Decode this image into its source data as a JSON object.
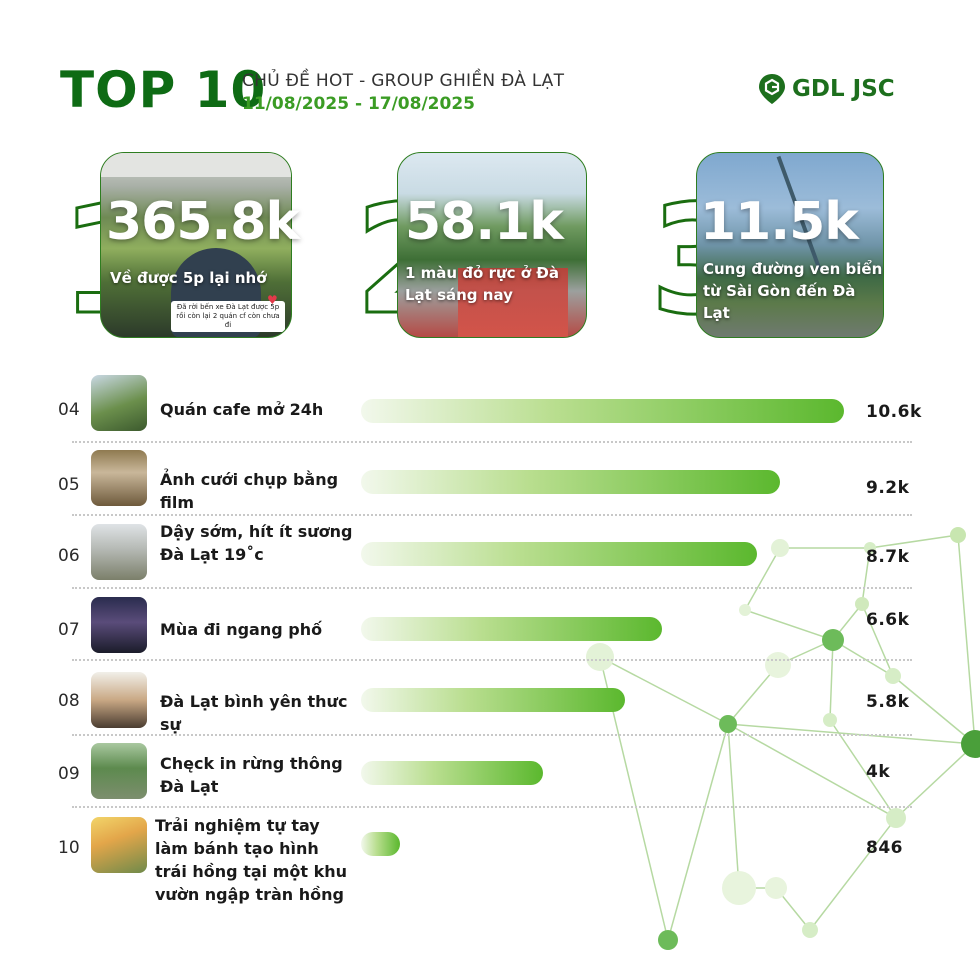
{
  "header": {
    "title": "TOP 10",
    "subtitle": "CHỦ ĐỀ HOT - GROUP GHIỀN ĐÀ LẠT",
    "date_range": "11/08/2025 - 17/08/2025",
    "brand": "GDL JSC"
  },
  "top3": [
    {
      "rank": "1",
      "value": "365.8k",
      "caption": "Về được 5p lại nhớ",
      "overlay_text": "Đã rời bến xe Đà Lạt được 5p rồi còn lại 2 quán cf còn chưa đi"
    },
    {
      "rank": "2",
      "value": "58.1k",
      "caption": "1 màu đỏ rực ở Đà Lạt sáng nay"
    },
    {
      "rank": "3",
      "value": "11.5k",
      "caption": "Cung đường ven biển từ Sài Gòn đến Đà Lạt"
    }
  ],
  "chart_data": {
    "type": "bar",
    "orientation": "horizontal",
    "title": "",
    "categories": [
      "04",
      "05",
      "06",
      "07",
      "08",
      "09",
      "10"
    ],
    "labels": [
      "Quán cafe mở 24h",
      "Ảnh cưới chụp bằng film",
      "Dậy sớm, hít ít sương Đà Lạt 19˚c",
      "Mùa đi ngang phố",
      "Đà Lạt bình yên thưc sự",
      "Chęck in rừng thông Đà Lạt",
      "Trải nghiệm tự tay làm bánh tạo hình trái hồng tại một khu vườn ngập tràn hồng"
    ],
    "values": [
      10600,
      9200,
      8700,
      6600,
      5800,
      4000,
      846
    ],
    "value_labels": [
      "10.6k",
      "9.2k",
      "8.7k",
      "6.6k",
      "5.8k",
      "4k",
      "846"
    ]
  },
  "colors": {
    "brand_green": "#0e6b14",
    "accent_green": "#3b9c24",
    "bar_end": "#5bb82e"
  }
}
